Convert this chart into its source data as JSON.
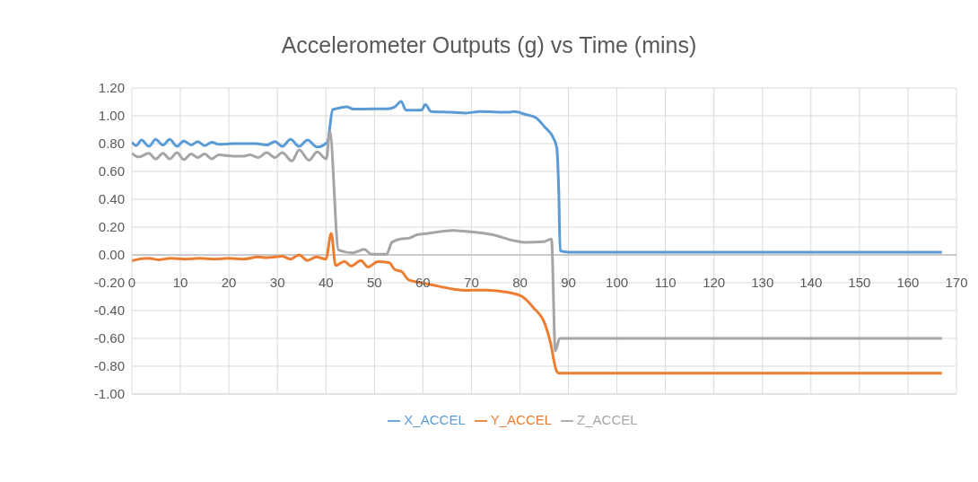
{
  "chart_data": {
    "type": "line",
    "title": "Accelerometer Outputs (g) vs Time (mins)",
    "xlim": [
      0,
      170
    ],
    "xticks": [
      0,
      10,
      20,
      30,
      40,
      50,
      60,
      70,
      80,
      90,
      100,
      110,
      120,
      130,
      140,
      150,
      160,
      170
    ],
    "ylim": [
      -1,
      1.2
    ],
    "yticks": [
      {
        "value": -1,
        "label": "-1.00"
      },
      {
        "value": -0.8,
        "label": "-0.80"
      },
      {
        "value": -0.6,
        "label": "-0.60"
      },
      {
        "value": -0.4,
        "label": "-0.40"
      },
      {
        "value": -0.2,
        "label": "-0.20"
      },
      {
        "value": 0,
        "label": "0.00"
      },
      {
        "value": 0.2,
        "label": "0.20"
      },
      {
        "value": 0.4,
        "label": "0.40"
      },
      {
        "value": 0.6,
        "label": "0.60"
      },
      {
        "value": 0.8,
        "label": "0.80"
      },
      {
        "value": 1,
        "label": "1.00"
      },
      {
        "value": 1.2,
        "label": "1.20"
      }
    ],
    "grid": true,
    "legend": "bottom",
    "series": [
      {
        "name": "X_ACCEL",
        "color": "#5b9bd5",
        "x": [
          0,
          0.85,
          2,
          3.5,
          4.9,
          6.4,
          7.8,
          9.3,
          10.7,
          12.2,
          13.6,
          15,
          16.5,
          17.9,
          21,
          24.3,
          25.5,
          27.8,
          29.5,
          31,
          32.7,
          34.5,
          36.2,
          38.2,
          40.3,
          41.4,
          42,
          44.3,
          45.7,
          49.8,
          52.7,
          54.2,
          55.5,
          56.5,
          59.7,
          60.5,
          61.7,
          66,
          68.9,
          71.8,
          77.6,
          78.8,
          81.1,
          83.1,
          85.2,
          86.9,
          87.6,
          88,
          88.3,
          90,
          100,
          110,
          120,
          130,
          140,
          150,
          160,
          167
        ],
        "values": [
          0.81,
          0.785,
          0.825,
          0.78,
          0.83,
          0.79,
          0.83,
          0.78,
          0.82,
          0.79,
          0.815,
          0.785,
          0.81,
          0.795,
          0.8,
          0.8,
          0.8,
          0.79,
          0.815,
          0.78,
          0.83,
          0.78,
          0.825,
          0.775,
          0.81,
          1.045,
          1.05,
          1.064,
          1.048,
          1.05,
          1.05,
          1.064,
          1.104,
          1.04,
          1.04,
          1.08,
          1.03,
          1.025,
          1.02,
          1.03,
          1.025,
          1.03,
          1.01,
          0.99,
          0.916,
          0.84,
          0.77,
          0.467,
          0.03,
          0.02,
          0.02,
          0.02,
          0.02,
          0.02,
          0.02,
          0.02,
          0.02,
          0.02
        ]
      },
      {
        "name": "Y_ACCEL",
        "color": "#ed7d31",
        "x": [
          0,
          1.5,
          3.5,
          5.5,
          8,
          11,
          14,
          17,
          20,
          23,
          26,
          28,
          31,
          32.7,
          34.5,
          36.2,
          38,
          40,
          41.1,
          42,
          43.8,
          45.2,
          47.2,
          48.7,
          50.7,
          53,
          54.2,
          55.6,
          57.1,
          59.7,
          63.2,
          66.1,
          69,
          73,
          77.6,
          80.5,
          82.8,
          85.2,
          86.3,
          87.5,
          88,
          90,
          100,
          110,
          120,
          130,
          140,
          150,
          160,
          167
        ],
        "values": [
          -0.043,
          -0.03,
          -0.025,
          -0.035,
          -0.025,
          -0.03,
          -0.025,
          -0.03,
          -0.025,
          -0.03,
          -0.015,
          -0.02,
          -0.01,
          -0.03,
          0,
          -0.04,
          -0.015,
          -0.03,
          0.155,
          -0.076,
          -0.047,
          -0.08,
          -0.04,
          -0.087,
          -0.048,
          -0.055,
          -0.105,
          -0.12,
          -0.18,
          -0.2,
          -0.225,
          -0.245,
          -0.255,
          -0.253,
          -0.27,
          -0.3,
          -0.38,
          -0.5,
          -0.63,
          -0.83,
          -0.85,
          -0.85,
          -0.85,
          -0.85,
          -0.85,
          -0.85,
          -0.85,
          -0.85,
          -0.85,
          -0.85
        ]
      },
      {
        "name": "Z_ACCEL",
        "color": "#a5a5a5",
        "x": [
          0,
          1.4,
          3.5,
          4.9,
          6.4,
          7.8,
          9.3,
          10.7,
          12.2,
          13.6,
          15,
          16.5,
          17.9,
          20.8,
          23.2,
          24.3,
          26,
          27.8,
          29.5,
          31,
          33,
          34.5,
          36.5,
          38.2,
          40.1,
          40.8,
          42.6,
          45.6,
          47.9,
          49.4,
          52.5,
          53.6,
          55.4,
          57.1,
          58.8,
          61.1,
          64,
          66.3,
          70.4,
          74.4,
          78.5,
          81.4,
          84.9,
          86.5,
          87.3,
          88.2,
          90,
          100,
          110,
          120,
          130,
          140,
          150,
          160,
          167
        ],
        "values": [
          0.73,
          0.704,
          0.73,
          0.69,
          0.73,
          0.69,
          0.735,
          0.685,
          0.725,
          0.7,
          0.725,
          0.69,
          0.72,
          0.71,
          0.71,
          0.72,
          0.7,
          0.735,
          0.7,
          0.735,
          0.675,
          0.755,
          0.68,
          0.74,
          0.69,
          0.886,
          0.035,
          0.015,
          0.04,
          0.005,
          0.005,
          0.09,
          0.115,
          0.12,
          0.145,
          0.155,
          0.17,
          0.175,
          0.165,
          0.145,
          0.105,
          0.09,
          0.095,
          0.115,
          -0.69,
          -0.6,
          -0.6,
          -0.6,
          -0.6,
          -0.6,
          -0.6,
          -0.6,
          -0.6,
          -0.6,
          -0.6
        ]
      }
    ]
  }
}
